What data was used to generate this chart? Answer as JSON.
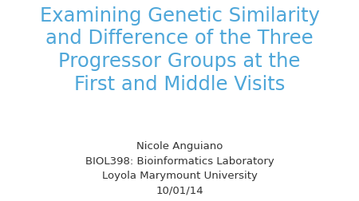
{
  "title_line1": "Examining Genetic Similarity",
  "title_line2": "and Difference of the Three",
  "title_line3": "Progressor Groups at the",
  "title_line4": "First and Middle Visits",
  "title_color": "#4da6d9",
  "subtitle_lines": [
    "Nicole Anguiano",
    "BIOL398: Bioinformatics Laboratory",
    "Loyola Marymount University",
    "10/01/14"
  ],
  "subtitle_color": "#333333",
  "background_color": "#ffffff",
  "title_fontsize": 17.5,
  "subtitle_fontsize": 9.5
}
